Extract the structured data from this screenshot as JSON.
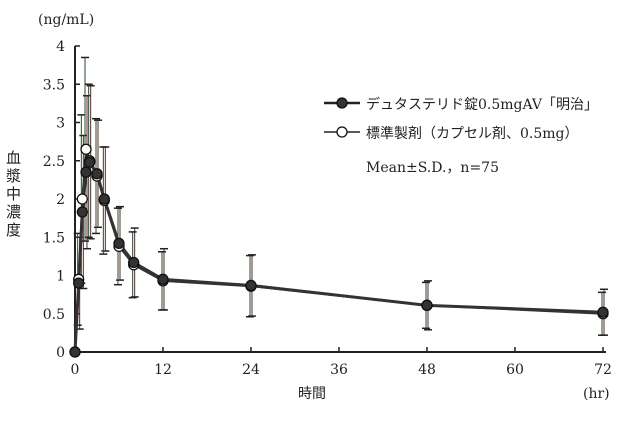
{
  "chart_data": {
    "type": "line",
    "ylabel": "血漿中濃度",
    "yunit": "(ng/mL)",
    "xlabel": "時間",
    "xunit": "(hr)",
    "xlim": [
      0,
      72
    ],
    "ylim": [
      0,
      4
    ],
    "xticks": [
      0,
      12,
      24,
      36,
      48,
      60,
      72
    ],
    "yticks": [
      0,
      0.5,
      1,
      1.5,
      2,
      2.5,
      3,
      3.5,
      4
    ],
    "ytick_labels": [
      "0",
      "0.5",
      "1",
      "1.5",
      "2",
      "2.5",
      "3",
      "3.5",
      "4"
    ],
    "x": [
      0,
      0.5,
      1,
      1.5,
      2,
      3,
      4,
      6,
      8,
      12,
      24,
      48,
      72
    ],
    "series": [
      {
        "name": "デュタステリド錠0.5mgAV「明治」",
        "marker": "filled",
        "color": "#222222",
        "values": [
          0,
          0.9,
          1.83,
          2.35,
          2.48,
          2.33,
          2.0,
          1.42,
          1.17,
          0.95,
          0.87,
          0.61,
          0.52
        ],
        "sd": [
          0,
          0.6,
          1.0,
          1.0,
          1.0,
          0.7,
          0.68,
          0.48,
          0.45,
          0.4,
          0.4,
          0.32,
          0.3
        ]
      },
      {
        "name": "標準製剤（カプセル剤、0.5mg）",
        "marker": "open",
        "color": "#222222",
        "values": [
          0,
          0.95,
          2.0,
          2.65,
          2.5,
          2.3,
          1.98,
          1.38,
          1.14,
          0.93,
          0.86,
          0.61,
          0.5
        ],
        "sd": [
          0,
          0.6,
          1.1,
          1.2,
          1.0,
          0.75,
          0.7,
          0.5,
          0.43,
          0.38,
          0.4,
          0.3,
          0.28
        ]
      }
    ],
    "annotation": "Mean±S.D.，n=75",
    "legend": "top-right"
  }
}
